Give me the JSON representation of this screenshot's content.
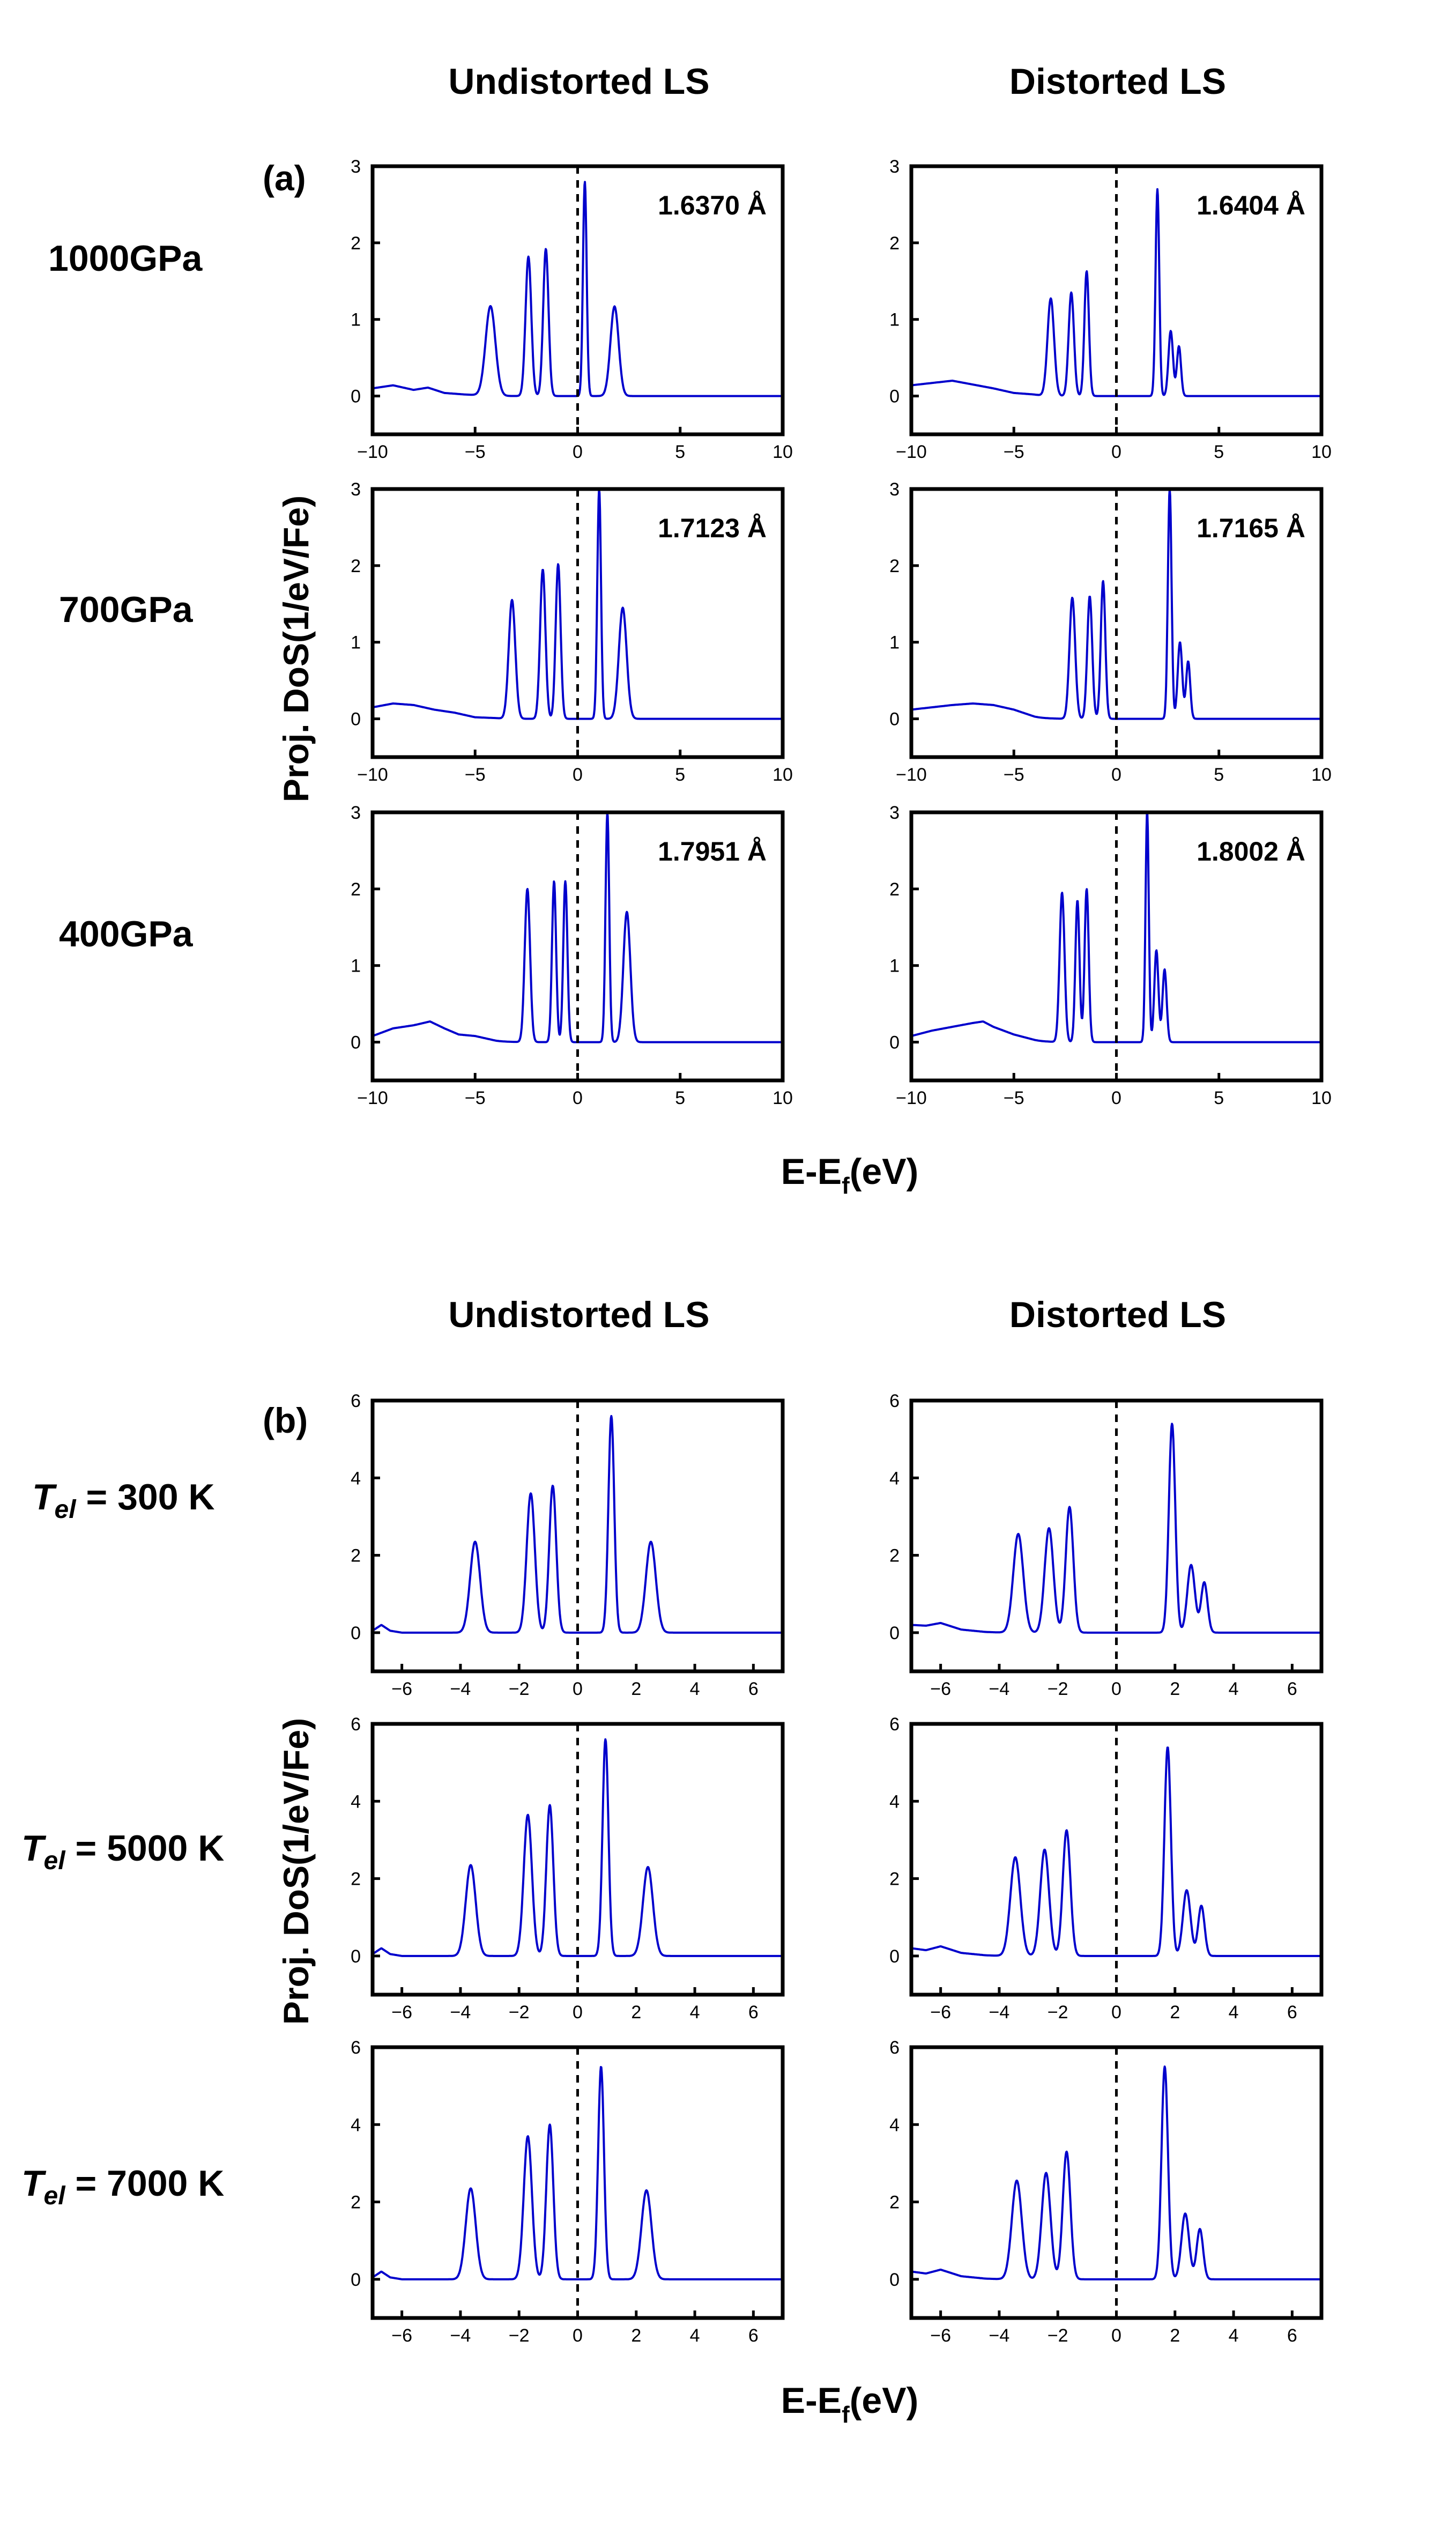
{
  "figure": {
    "sections": [
      {
        "panel_label": "(a)",
        "column_headers": [
          "Undistorted LS",
          "Distorted LS"
        ],
        "row_labels": [
          {
            "main": "1000GPa"
          },
          {
            "main": "700GPa"
          },
          {
            "main": "400GPa"
          }
        ],
        "y_axis_label": "Proj. DoS(1/eV/Fe)",
        "x_axis_label": {
          "base": "E-E",
          "sub": "f",
          "tail": "(eV)"
        }
      },
      {
        "panel_label": "(b)",
        "column_headers": [
          "Undistorted LS",
          "Distorted LS"
        ],
        "row_labels": [
          {
            "italic": "T",
            "sub": "el",
            "main": " = 300 K"
          },
          {
            "italic": "T",
            "sub": "el",
            "main": " = 5000 K"
          },
          {
            "italic": "T",
            "sub": "el",
            "main": " = 7000 K"
          }
        ],
        "y_axis_label": "Proj. DoS(1/eV/Fe)",
        "x_axis_label": {
          "base": "E-E",
          "sub": "f",
          "tail": "(eV)"
        }
      }
    ]
  },
  "colors": {
    "curve": "#0000cc",
    "fermi_line": "#000000",
    "frame": "#000000"
  },
  "chart_data": [
    {
      "type": "line",
      "id": "a-1000-undist",
      "section": 0,
      "row": 0,
      "col": 0,
      "annotation": "1.6370 Å",
      "xlim": [
        -10,
        10
      ],
      "ylim": [
        -0.5,
        3
      ],
      "xticks": [
        -10,
        -5,
        0,
        5,
        10
      ],
      "yticks": [
        0,
        1,
        2,
        3
      ],
      "baseline": [
        [
          -10,
          0.1
        ],
        [
          -9,
          0.14
        ],
        [
          -8,
          0.08
        ],
        [
          -7.3,
          0.11
        ],
        [
          -6.5,
          0.04
        ],
        [
          -5.5,
          0.02
        ],
        [
          -4.7,
          0.01
        ]
      ],
      "peaks": [
        [
          -4.25,
          1.17,
          0.24
        ],
        [
          -2.4,
          1.82,
          0.14
        ],
        [
          -1.55,
          1.92,
          0.13
        ],
        [
          0.35,
          2.8,
          0.09
        ],
        [
          1.8,
          1.17,
          0.2
        ]
      ]
    },
    {
      "type": "line",
      "id": "a-1000-dist",
      "section": 0,
      "row": 0,
      "col": 1,
      "annotation": "1.6404 Å",
      "xlim": [
        -10,
        10
      ],
      "ylim": [
        -0.5,
        3
      ],
      "xticks": [
        -10,
        -5,
        0,
        5,
        10
      ],
      "yticks": [
        0,
        1,
        2,
        3
      ],
      "baseline": [
        [
          -10,
          0.14
        ],
        [
          -9,
          0.17
        ],
        [
          -8,
          0.2
        ],
        [
          -7,
          0.15
        ],
        [
          -6,
          0.1
        ],
        [
          -5,
          0.04
        ],
        [
          -4,
          0.02
        ]
      ],
      "peaks": [
        [
          -3.2,
          1.27,
          0.16
        ],
        [
          -2.2,
          1.35,
          0.13
        ],
        [
          -1.45,
          1.63,
          0.11
        ],
        [
          2.0,
          2.7,
          0.09
        ],
        [
          2.65,
          0.85,
          0.11
        ],
        [
          3.05,
          0.65,
          0.1
        ]
      ]
    },
    {
      "type": "line",
      "id": "a-700-undist",
      "section": 0,
      "row": 1,
      "col": 0,
      "annotation": "1.7123 Å",
      "xlim": [
        -10,
        10
      ],
      "ylim": [
        -0.5,
        3
      ],
      "xticks": [
        -10,
        -5,
        0,
        5,
        10
      ],
      "yticks": [
        0,
        1,
        2,
        3
      ],
      "baseline": [
        [
          -10,
          0.15
        ],
        [
          -9,
          0.2
        ],
        [
          -8,
          0.18
        ],
        [
          -7,
          0.12
        ],
        [
          -6,
          0.08
        ],
        [
          -5,
          0.02
        ],
        [
          -4,
          0.01
        ]
      ],
      "peaks": [
        [
          -3.2,
          1.55,
          0.16
        ],
        [
          -1.7,
          1.95,
          0.13
        ],
        [
          -0.95,
          2.02,
          0.12
        ],
        [
          1.05,
          3.0,
          0.09
        ],
        [
          2.2,
          1.45,
          0.19
        ]
      ]
    },
    {
      "type": "line",
      "id": "a-700-dist",
      "section": 0,
      "row": 1,
      "col": 1,
      "annotation": "1.7165 Å",
      "xlim": [
        -10,
        10
      ],
      "ylim": [
        -0.5,
        3
      ],
      "xticks": [
        -10,
        -5,
        0,
        5,
        10
      ],
      "yticks": [
        0,
        1,
        2,
        3
      ],
      "baseline": [
        [
          -10,
          0.12
        ],
        [
          -9,
          0.15
        ],
        [
          -8,
          0.18
        ],
        [
          -7,
          0.2
        ],
        [
          -6,
          0.18
        ],
        [
          -5,
          0.12
        ],
        [
          -4,
          0.03
        ]
      ],
      "peaks": [
        [
          -2.15,
          1.58,
          0.14
        ],
        [
          -1.3,
          1.6,
          0.12
        ],
        [
          -0.65,
          1.8,
          0.11
        ],
        [
          2.6,
          3.0,
          0.09
        ],
        [
          3.1,
          1.0,
          0.11
        ],
        [
          3.5,
          0.75,
          0.1
        ]
      ]
    },
    {
      "type": "line",
      "id": "a-400-undist",
      "section": 0,
      "row": 2,
      "col": 0,
      "annotation": "1.7951 Å",
      "xlim": [
        -10,
        10
      ],
      "ylim": [
        -0.5,
        3
      ],
      "xticks": [
        -10,
        -5,
        0,
        5,
        10
      ],
      "yticks": [
        0,
        1,
        2,
        3
      ],
      "baseline": [
        [
          -10,
          0.08
        ],
        [
          -9,
          0.18
        ],
        [
          -8,
          0.22
        ],
        [
          -7.2,
          0.27
        ],
        [
          -6.5,
          0.18
        ],
        [
          -5.8,
          0.1
        ],
        [
          -5,
          0.08
        ],
        [
          -4,
          0.02
        ]
      ],
      "peaks": [
        [
          -2.45,
          2.0,
          0.13
        ],
        [
          -1.15,
          2.1,
          0.1
        ],
        [
          -0.6,
          2.1,
          0.1
        ],
        [
          1.45,
          3.0,
          0.09
        ],
        [
          2.4,
          1.7,
          0.17
        ]
      ]
    },
    {
      "type": "line",
      "id": "a-400-dist",
      "section": 0,
      "row": 2,
      "col": 1,
      "annotation": "1.8002 Å",
      "xlim": [
        -10,
        10
      ],
      "ylim": [
        -0.5,
        3
      ],
      "xticks": [
        -10,
        -5,
        0,
        5,
        10
      ],
      "yticks": [
        0,
        1,
        2,
        3
      ],
      "baseline": [
        [
          -10,
          0.08
        ],
        [
          -9,
          0.15
        ],
        [
          -8,
          0.2
        ],
        [
          -7,
          0.25
        ],
        [
          -6.5,
          0.27
        ],
        [
          -6,
          0.2
        ],
        [
          -5,
          0.1
        ],
        [
          -4,
          0.03
        ]
      ],
      "peaks": [
        [
          -2.65,
          1.95,
          0.12
        ],
        [
          -1.9,
          1.85,
          0.1
        ],
        [
          -1.45,
          2.0,
          0.1
        ],
        [
          1.5,
          3.0,
          0.08
        ],
        [
          1.95,
          1.2,
          0.1
        ],
        [
          2.35,
          0.95,
          0.1
        ]
      ]
    },
    {
      "type": "line",
      "id": "b-300-undist",
      "section": 1,
      "row": 0,
      "col": 0,
      "xlim": [
        -7,
        7
      ],
      "ylim": [
        -1,
        6
      ],
      "xticks": [
        -6,
        -4,
        -2,
        0,
        2,
        4,
        6
      ],
      "yticks": [
        0,
        2,
        4,
        6
      ],
      "baseline": [
        [
          -7,
          0.05
        ],
        [
          -6.7,
          0.2
        ],
        [
          -6.4,
          0.05
        ],
        [
          -6,
          0.0
        ]
      ],
      "peaks": [
        [
          -3.5,
          2.35,
          0.17
        ],
        [
          -1.6,
          3.6,
          0.14
        ],
        [
          -0.85,
          3.8,
          0.12
        ],
        [
          1.15,
          5.6,
          0.1
        ],
        [
          2.5,
          2.35,
          0.17
        ]
      ]
    },
    {
      "type": "line",
      "id": "b-300-dist",
      "section": 1,
      "row": 0,
      "col": 1,
      "xlim": [
        -7,
        7
      ],
      "ylim": [
        -1,
        6
      ],
      "xticks": [
        -6,
        -4,
        -2,
        0,
        2,
        4,
        6
      ],
      "yticks": [
        0,
        2,
        4,
        6
      ],
      "baseline": [
        [
          -7,
          0.2
        ],
        [
          -6.5,
          0.18
        ],
        [
          -6,
          0.25
        ],
        [
          -5.3,
          0.08
        ],
        [
          -4.5,
          0.02
        ]
      ],
      "peaks": [
        [
          -3.35,
          2.55,
          0.17
        ],
        [
          -2.3,
          2.7,
          0.15
        ],
        [
          -1.6,
          3.25,
          0.13
        ],
        [
          1.9,
          5.4,
          0.11
        ],
        [
          2.55,
          1.75,
          0.13
        ],
        [
          3.0,
          1.3,
          0.11
        ]
      ]
    },
    {
      "type": "line",
      "id": "b-5000-undist",
      "section": 1,
      "row": 1,
      "col": 0,
      "xlim": [
        -7,
        7
      ],
      "ylim": [
        -1,
        6
      ],
      "xticks": [
        -6,
        -4,
        -2,
        0,
        2,
        4,
        6
      ],
      "yticks": [
        0,
        2,
        4,
        6
      ],
      "baseline": [
        [
          -7,
          0.05
        ],
        [
          -6.7,
          0.2
        ],
        [
          -6.4,
          0.05
        ],
        [
          -6,
          0.0
        ]
      ],
      "peaks": [
        [
          -3.65,
          2.35,
          0.17
        ],
        [
          -1.7,
          3.65,
          0.14
        ],
        [
          -0.95,
          3.9,
          0.12
        ],
        [
          0.95,
          5.6,
          0.1
        ],
        [
          2.4,
          2.3,
          0.17
        ]
      ]
    },
    {
      "type": "line",
      "id": "b-5000-dist",
      "section": 1,
      "row": 1,
      "col": 1,
      "xlim": [
        -7,
        7
      ],
      "ylim": [
        -1,
        6
      ],
      "xticks": [
        -6,
        -4,
        -2,
        0,
        2,
        4,
        6
      ],
      "yticks": [
        0,
        2,
        4,
        6
      ],
      "baseline": [
        [
          -7,
          0.2
        ],
        [
          -6.5,
          0.15
        ],
        [
          -6,
          0.25
        ],
        [
          -5.3,
          0.08
        ],
        [
          -4.5,
          0.02
        ]
      ],
      "peaks": [
        [
          -3.45,
          2.55,
          0.17
        ],
        [
          -2.45,
          2.75,
          0.15
        ],
        [
          -1.7,
          3.25,
          0.13
        ],
        [
          1.75,
          5.4,
          0.11
        ],
        [
          2.4,
          1.7,
          0.13
        ],
        [
          2.9,
          1.3,
          0.11
        ]
      ]
    },
    {
      "type": "line",
      "id": "b-7000-undist",
      "section": 1,
      "row": 2,
      "col": 0,
      "xlim": [
        -7,
        7
      ],
      "ylim": [
        -1,
        6
      ],
      "xticks": [
        -6,
        -4,
        -2,
        0,
        2,
        4,
        6
      ],
      "yticks": [
        0,
        2,
        4,
        6
      ],
      "baseline": [
        [
          -7,
          0.05
        ],
        [
          -6.7,
          0.2
        ],
        [
          -6.4,
          0.05
        ],
        [
          -6,
          0.0
        ]
      ],
      "peaks": [
        [
          -3.65,
          2.35,
          0.17
        ],
        [
          -1.7,
          3.7,
          0.14
        ],
        [
          -0.95,
          4.0,
          0.12
        ],
        [
          0.8,
          5.5,
          0.1
        ],
        [
          2.35,
          2.3,
          0.17
        ]
      ]
    },
    {
      "type": "line",
      "id": "b-7000-dist",
      "section": 1,
      "row": 2,
      "col": 1,
      "xlim": [
        -7,
        7
      ],
      "ylim": [
        -1,
        6
      ],
      "xticks": [
        -6,
        -4,
        -2,
        0,
        2,
        4,
        6
      ],
      "yticks": [
        0,
        2,
        4,
        6
      ],
      "baseline": [
        [
          -7,
          0.2
        ],
        [
          -6.5,
          0.15
        ],
        [
          -6,
          0.25
        ],
        [
          -5.3,
          0.08
        ],
        [
          -4.5,
          0.02
        ]
      ],
      "peaks": [
        [
          -3.4,
          2.55,
          0.17
        ],
        [
          -2.4,
          2.75,
          0.15
        ],
        [
          -1.7,
          3.3,
          0.13
        ],
        [
          1.65,
          5.5,
          0.11
        ],
        [
          2.35,
          1.7,
          0.13
        ],
        [
          2.85,
          1.3,
          0.11
        ]
      ]
    }
  ]
}
